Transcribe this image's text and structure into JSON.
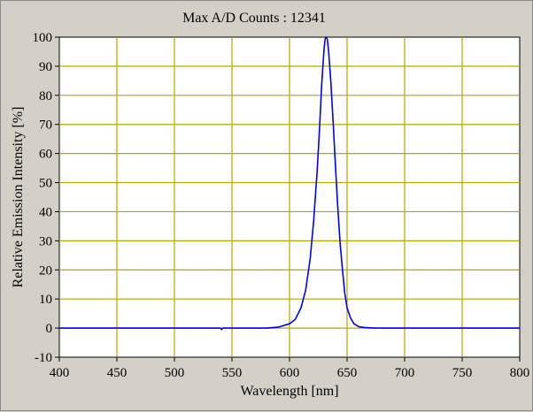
{
  "chart_data": {
    "type": "line",
    "title": "Max A/D Counts : 12341",
    "xlabel": "Wavelength [nm]",
    "ylabel": "Relative Emission Intensity [%]",
    "xlim": [
      400,
      800
    ],
    "ylim": [
      -10,
      100
    ],
    "xticks": [
      400,
      450,
      500,
      550,
      600,
      650,
      700,
      750,
      800
    ],
    "yticks": [
      -10,
      0,
      10,
      20,
      30,
      40,
      50,
      60,
      70,
      80,
      90,
      100
    ],
    "grid": true,
    "series": [
      {
        "color": "#0000ff",
        "x": [
          400,
          500,
          540,
          541,
          542,
          560,
          580,
          590,
          600,
          605,
          610,
          614,
          618,
          621,
          624,
          626,
          628,
          630,
          631,
          632,
          633,
          634,
          636,
          638,
          640,
          642,
          644,
          646,
          648,
          650,
          653,
          656,
          660,
          665,
          670,
          675,
          680,
          700,
          800
        ],
        "y": [
          0,
          0,
          0,
          -0.5,
          0,
          0,
          0,
          0.3,
          1.5,
          3,
          7,
          13,
          24,
          37,
          54,
          68,
          84,
          96,
          99.5,
          100,
          99,
          95,
          84,
          70,
          55,
          41,
          29,
          20,
          12,
          7,
          3.5,
          1.5,
          0.5,
          0.2,
          0.1,
          0,
          0,
          0,
          0
        ]
      }
    ]
  },
  "colors": {
    "background": "#d4d0c8",
    "plot_area": "#ffffff",
    "grid": "#b3a800",
    "line": "#0000ff"
  }
}
